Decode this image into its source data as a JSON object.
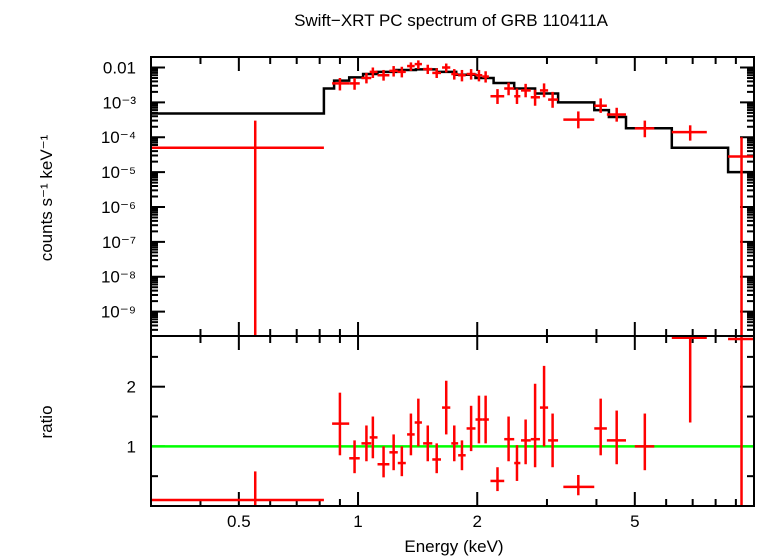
{
  "chart_data": {
    "type": "scatter",
    "title": "Swift−XRT PC spectrum of GRB 110411A",
    "xlabel": "Energy (keV)",
    "x_scale": "log",
    "xlim": [
      0.3,
      10
    ],
    "x_ticks": [
      {
        "value": 0.5,
        "label": "0.5"
      },
      {
        "value": 1,
        "label": "1"
      },
      {
        "value": 2,
        "label": "2"
      },
      {
        "value": 5,
        "label": "5"
      }
    ],
    "top_panel": {
      "ylabel": "counts s⁻¹ keV⁻¹",
      "y_scale": "log",
      "ylim": [
        2e-10,
        0.02
      ],
      "y_ticks": [
        {
          "value": 0.01,
          "label": "0.01"
        },
        {
          "value": 0.001,
          "label": "10⁻³"
        },
        {
          "value": 0.0001,
          "label": "10⁻⁴"
        },
        {
          "value": 1e-05,
          "label": "10⁻⁵"
        },
        {
          "value": 1e-06,
          "label": "10⁻⁶"
        },
        {
          "value": 1e-07,
          "label": "10⁻⁷"
        },
        {
          "value": 1e-08,
          "label": "10⁻⁸"
        },
        {
          "value": 1e-09,
          "label": "10⁻⁹"
        }
      ],
      "data_points": [
        {
          "x": 0.55,
          "xlo": 0.3,
          "xhi": 0.82,
          "y": 5e-05,
          "ylo": 1e-10,
          "yhi": 0.0003
        },
        {
          "x": 0.9,
          "xlo": 0.86,
          "xhi": 0.95,
          "y": 0.0035,
          "ylo": 0.0022,
          "yhi": 0.005
        },
        {
          "x": 0.98,
          "xlo": 0.95,
          "xhi": 1.01,
          "y": 0.0035,
          "ylo": 0.0023,
          "yhi": 0.005
        },
        {
          "x": 1.05,
          "xlo": 1.02,
          "xhi": 1.08,
          "y": 0.005,
          "ylo": 0.0035,
          "yhi": 0.007
        },
        {
          "x": 1.09,
          "xlo": 1.07,
          "xhi": 1.12,
          "y": 0.0075,
          "ylo": 0.005,
          "yhi": 0.01
        },
        {
          "x": 1.16,
          "xlo": 1.12,
          "xhi": 1.2,
          "y": 0.006,
          "ylo": 0.0042,
          "yhi": 0.0085
        },
        {
          "x": 1.23,
          "xlo": 1.2,
          "xhi": 1.26,
          "y": 0.008,
          "ylo": 0.0055,
          "yhi": 0.011
        },
        {
          "x": 1.29,
          "xlo": 1.26,
          "xhi": 1.32,
          "y": 0.0075,
          "ylo": 0.0052,
          "yhi": 0.0105
        },
        {
          "x": 1.36,
          "xlo": 1.33,
          "xhi": 1.39,
          "y": 0.011,
          "ylo": 0.008,
          "yhi": 0.014
        },
        {
          "x": 1.42,
          "xlo": 1.39,
          "xhi": 1.45,
          "y": 0.0125,
          "ylo": 0.009,
          "yhi": 0.016
        },
        {
          "x": 1.5,
          "xlo": 1.46,
          "xhi": 1.54,
          "y": 0.009,
          "ylo": 0.0065,
          "yhi": 0.012
        },
        {
          "x": 1.58,
          "xlo": 1.54,
          "xhi": 1.62,
          "y": 0.007,
          "ylo": 0.005,
          "yhi": 0.0095
        },
        {
          "x": 1.67,
          "xlo": 1.63,
          "xhi": 1.71,
          "y": 0.01,
          "ylo": 0.0072,
          "yhi": 0.013
        },
        {
          "x": 1.75,
          "xlo": 1.72,
          "xhi": 1.79,
          "y": 0.0065,
          "ylo": 0.0045,
          "yhi": 0.009
        },
        {
          "x": 1.83,
          "xlo": 1.79,
          "xhi": 1.87,
          "y": 0.006,
          "ylo": 0.004,
          "yhi": 0.0085
        },
        {
          "x": 1.93,
          "xlo": 1.88,
          "xhi": 1.98,
          "y": 0.0065,
          "ylo": 0.0045,
          "yhi": 0.009
        },
        {
          "x": 2.02,
          "xlo": 1.98,
          "xhi": 2.06,
          "y": 0.006,
          "ylo": 0.004,
          "yhi": 0.0085
        },
        {
          "x": 2.1,
          "xlo": 2.06,
          "xhi": 2.14,
          "y": 0.0055,
          "ylo": 0.0037,
          "yhi": 0.0078
        },
        {
          "x": 2.25,
          "xlo": 2.16,
          "xhi": 2.34,
          "y": 0.0015,
          "ylo": 0.0009,
          "yhi": 0.0024
        },
        {
          "x": 2.4,
          "xlo": 2.34,
          "xhi": 2.48,
          "y": 0.0025,
          "ylo": 0.0016,
          "yhi": 0.0037
        },
        {
          "x": 2.52,
          "xlo": 2.48,
          "xhi": 2.57,
          "y": 0.0015,
          "ylo": 0.0009,
          "yhi": 0.0025
        },
        {
          "x": 2.65,
          "xlo": 2.58,
          "xhi": 2.73,
          "y": 0.0022,
          "ylo": 0.0014,
          "yhi": 0.0034
        },
        {
          "x": 2.8,
          "xlo": 2.73,
          "xhi": 2.88,
          "y": 0.0014,
          "ylo": 0.0008,
          "yhi": 0.0023
        },
        {
          "x": 2.95,
          "xlo": 2.88,
          "xhi": 3.02,
          "y": 0.0022,
          "ylo": 0.0014,
          "yhi": 0.0035
        },
        {
          "x": 3.1,
          "xlo": 3.02,
          "xhi": 3.2,
          "y": 0.0012,
          "ylo": 0.0007,
          "yhi": 0.002
        },
        {
          "x": 3.6,
          "xlo": 3.3,
          "xhi": 3.95,
          "y": 0.00032,
          "ylo": 0.00018,
          "yhi": 0.00055
        },
        {
          "x": 4.1,
          "xlo": 3.95,
          "xhi": 4.25,
          "y": 0.0008,
          "ylo": 0.0005,
          "yhi": 0.0013
        },
        {
          "x": 4.5,
          "xlo": 4.25,
          "xhi": 4.75,
          "y": 0.00045,
          "ylo": 0.00028,
          "yhi": 0.0007
        },
        {
          "x": 5.3,
          "xlo": 5.0,
          "xhi": 5.6,
          "y": 0.00018,
          "ylo": 0.0001,
          "yhi": 0.0003
        },
        {
          "x": 6.9,
          "xlo": 6.2,
          "xhi": 7.6,
          "y": 0.00014,
          "ylo": 8e-05,
          "yhi": 0.00022
        },
        {
          "x": 9.3,
          "xlo": 8.6,
          "xhi": 10.0,
          "y": 2.8e-05,
          "ylo": 1e-10,
          "yhi": 0.0001
        }
      ],
      "model_steps": [
        {
          "xlo": 0.3,
          "xhi": 0.82,
          "y": 0.00048
        },
        {
          "xlo": 0.82,
          "xhi": 0.87,
          "y": 0.0025
        },
        {
          "xlo": 0.87,
          "xhi": 0.95,
          "y": 0.0042
        },
        {
          "xlo": 0.95,
          "xhi": 1.03,
          "y": 0.0052
        },
        {
          "xlo": 1.03,
          "xhi": 1.12,
          "y": 0.0065
        },
        {
          "xlo": 1.12,
          "xhi": 1.25,
          "y": 0.0075
        },
        {
          "xlo": 1.25,
          "xhi": 1.4,
          "y": 0.0085
        },
        {
          "xlo": 1.4,
          "xlo2": 1.4,
          "xhi": 1.58,
          "y": 0.0088
        },
        {
          "xlo": 1.58,
          "xhi": 1.77,
          "y": 0.0075
        },
        {
          "xlo": 1.77,
          "xhi": 1.98,
          "y": 0.0062
        },
        {
          "xlo": 1.98,
          "xhi": 2.2,
          "y": 0.005
        },
        {
          "xlo": 2.2,
          "xhi": 2.48,
          "y": 0.0036
        },
        {
          "xlo": 2.48,
          "xhi": 2.8,
          "y": 0.0025
        },
        {
          "xlo": 2.8,
          "xhi": 3.2,
          "y": 0.0018
        },
        {
          "xlo": 3.2,
          "xhi": 3.95,
          "y": 0.001
        },
        {
          "xlo": 3.95,
          "xhi": 4.3,
          "y": 0.0006
        },
        {
          "xlo": 4.3,
          "xhi": 4.75,
          "y": 0.00038
        },
        {
          "xlo": 4.75,
          "xhi": 6.2,
          "y": 0.00018
        },
        {
          "xlo": 6.2,
          "xhi": 8.6,
          "y": 5e-05
        },
        {
          "xlo": 8.6,
          "xhi": 10.0,
          "y": 1e-05
        }
      ],
      "data_color": "#ff0000",
      "model_color": "#000000"
    },
    "bottom_panel": {
      "ylabel": "ratio",
      "y_scale": "linear",
      "ylim": [
        0,
        2.85
      ],
      "y_ticks": [
        {
          "value": 1,
          "label": "1"
        },
        {
          "value": 2,
          "label": "2"
        }
      ],
      "reference_line": {
        "y": 1,
        "color": "#00ff00"
      },
      "data_points": [
        {
          "x": 0.55,
          "xlo": 0.3,
          "xhi": 0.82,
          "y": 0.1,
          "ylo": 0,
          "yhi": 0.58
        },
        {
          "x": 0.9,
          "xlo": 0.86,
          "xhi": 0.95,
          "y": 1.38,
          "ylo": 0.85,
          "yhi": 1.9
        },
        {
          "x": 0.98,
          "xlo": 0.95,
          "xhi": 1.01,
          "y": 0.8,
          "ylo": 0.55,
          "yhi": 1.1
        },
        {
          "x": 1.05,
          "xlo": 1.02,
          "xhi": 1.08,
          "y": 1.05,
          "ylo": 0.75,
          "yhi": 1.35
        },
        {
          "x": 1.09,
          "xlo": 1.07,
          "xhi": 1.12,
          "y": 1.15,
          "ylo": 0.8,
          "yhi": 1.5
        },
        {
          "x": 1.16,
          "xlo": 1.12,
          "xhi": 1.2,
          "y": 0.7,
          "ylo": 0.48,
          "yhi": 1.0
        },
        {
          "x": 1.23,
          "xlo": 1.2,
          "xhi": 1.26,
          "y": 0.9,
          "ylo": 0.6,
          "yhi": 1.2
        },
        {
          "x": 1.29,
          "xlo": 1.26,
          "xhi": 1.32,
          "y": 0.72,
          "ylo": 0.5,
          "yhi": 1.0
        },
        {
          "x": 1.36,
          "xlo": 1.33,
          "xhi": 1.39,
          "y": 1.2,
          "ylo": 0.85,
          "yhi": 1.55
        },
        {
          "x": 1.42,
          "xlo": 1.39,
          "xhi": 1.45,
          "y": 1.4,
          "ylo": 1.0,
          "yhi": 1.8
        },
        {
          "x": 1.5,
          "xlo": 1.46,
          "xhi": 1.54,
          "y": 1.05,
          "ylo": 0.75,
          "yhi": 1.35
        },
        {
          "x": 1.58,
          "xlo": 1.54,
          "xhi": 1.62,
          "y": 0.78,
          "ylo": 0.55,
          "yhi": 1.05
        },
        {
          "x": 1.67,
          "xlo": 1.63,
          "xhi": 1.71,
          "y": 1.65,
          "ylo": 1.2,
          "yhi": 2.1
        },
        {
          "x": 1.75,
          "xlo": 1.72,
          "xhi": 1.79,
          "y": 1.05,
          "ylo": 0.75,
          "yhi": 1.35
        },
        {
          "x": 1.83,
          "xlo": 1.79,
          "xhi": 1.87,
          "y": 0.85,
          "ylo": 0.6,
          "yhi": 1.1
        },
        {
          "x": 1.93,
          "xlo": 1.88,
          "xhi": 1.98,
          "y": 1.3,
          "ylo": 0.92,
          "yhi": 1.68
        },
        {
          "x": 2.02,
          "xlo": 1.98,
          "xhi": 2.06,
          "y": 1.45,
          "ylo": 1.05,
          "yhi": 1.85
        },
        {
          "x": 2.1,
          "xlo": 2.06,
          "xhi": 2.14,
          "y": 1.45,
          "ylo": 1.05,
          "yhi": 1.85
        },
        {
          "x": 2.25,
          "xlo": 2.16,
          "xhi": 2.34,
          "y": 0.42,
          "ylo": 0.25,
          "yhi": 0.65
        },
        {
          "x": 2.4,
          "xlo": 2.34,
          "xhi": 2.48,
          "y": 1.12,
          "ylo": 0.75,
          "yhi": 1.5
        },
        {
          "x": 2.52,
          "xlo": 2.48,
          "xhi": 2.57,
          "y": 0.72,
          "ylo": 0.42,
          "yhi": 1.02
        },
        {
          "x": 2.65,
          "xlo": 2.58,
          "xhi": 2.73,
          "y": 1.1,
          "ylo": 0.7,
          "yhi": 1.45
        },
        {
          "x": 2.8,
          "xlo": 2.73,
          "xhi": 2.88,
          "y": 1.12,
          "ylo": 0.65,
          "yhi": 2.05
        },
        {
          "x": 2.95,
          "xlo": 2.88,
          "xhi": 3.02,
          "y": 1.65,
          "ylo": 1.0,
          "yhi": 2.35
        },
        {
          "x": 3.1,
          "xlo": 3.02,
          "xhi": 3.2,
          "y": 1.1,
          "ylo": 0.65,
          "yhi": 1.55
        },
        {
          "x": 3.6,
          "xlo": 3.3,
          "xhi": 3.95,
          "y": 0.32,
          "ylo": 0.18,
          "yhi": 0.52
        },
        {
          "x": 4.1,
          "xlo": 3.95,
          "xhi": 4.25,
          "y": 1.3,
          "ylo": 0.85,
          "yhi": 1.8
        },
        {
          "x": 4.5,
          "xlo": 4.25,
          "xhi": 4.75,
          "y": 1.1,
          "ylo": 0.7,
          "yhi": 1.6
        },
        {
          "x": 5.3,
          "xlo": 5.0,
          "xhi": 5.6,
          "y": 1.0,
          "ylo": 0.6,
          "yhi": 1.55
        },
        {
          "x": 6.9,
          "xlo": 6.2,
          "xhi": 7.6,
          "y": 2.82,
          "ylo": 1.4,
          "yhi": 2.85
        },
        {
          "x": 9.3,
          "xlo": 8.6,
          "xhi": 10.0,
          "y": 2.8,
          "ylo": 0,
          "yhi": 2.85
        }
      ],
      "data_color": "#ff0000"
    }
  }
}
